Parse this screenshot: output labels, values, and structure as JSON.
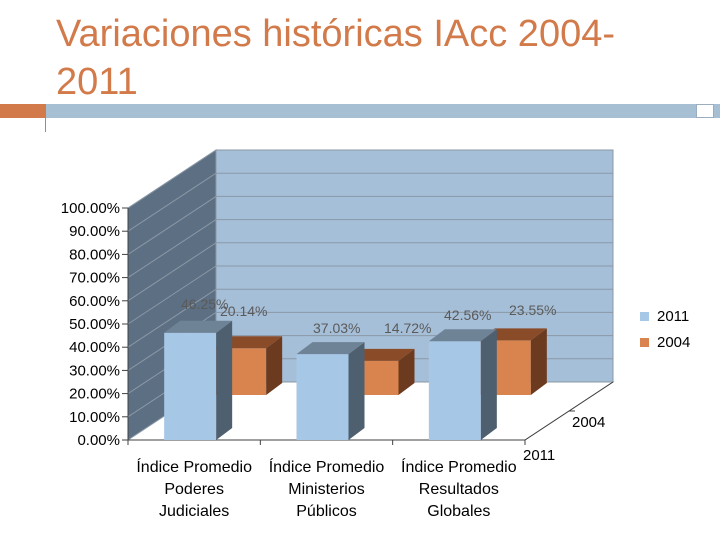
{
  "slide": {
    "title": "Variaciones históricas IAcc 2004-2011"
  },
  "chart_data": {
    "type": "bar",
    "categories": [
      "Índice Promedio Poderes Judiciales",
      "Índice Promedio Ministerios Públicos",
      "Índice Promedio Resultados Globales"
    ],
    "category_label_lines": [
      [
        "Índice Promedio",
        "Poderes",
        "Judiciales"
      ],
      [
        "Índice Promedio",
        "Ministerios",
        "Públicos"
      ],
      [
        "Índice Promedio",
        "Resultados",
        "Globales"
      ]
    ],
    "series": [
      {
        "name": "2011",
        "values": [
          46.25,
          37.03,
          42.56
        ],
        "labels": [
          "46.25%",
          "37.03%",
          "42.56%"
        ]
      },
      {
        "name": "2004",
        "values": [
          20.14,
          14.72,
          23.55
        ],
        "labels": [
          "20.14%",
          "14.72%",
          "23.55%"
        ]
      }
    ],
    "depth_labels": [
      "2004",
      "2011"
    ],
    "yticks": [
      "0.00%",
      "10.00%",
      "20.00%",
      "30.00%",
      "40.00%",
      "50.00%",
      "60.00%",
      "70.00%",
      "80.00%",
      "90.00%",
      "100.00%"
    ],
    "ylim": [
      0,
      100
    ],
    "grid": true,
    "legend_position": "right",
    "colors": {
      "series_2011_front": "#a7c7e7",
      "series_2011_side": "#4e5f70",
      "series_2011_top": "#6f8396",
      "series_2004_front": "#d9844e",
      "series_2004_side": "#6b3a1f",
      "series_2004_top": "#8a4b28",
      "back_wall": "#a6bfd8",
      "side_wall": "#5d6f83",
      "title": "#d27a4a"
    }
  }
}
